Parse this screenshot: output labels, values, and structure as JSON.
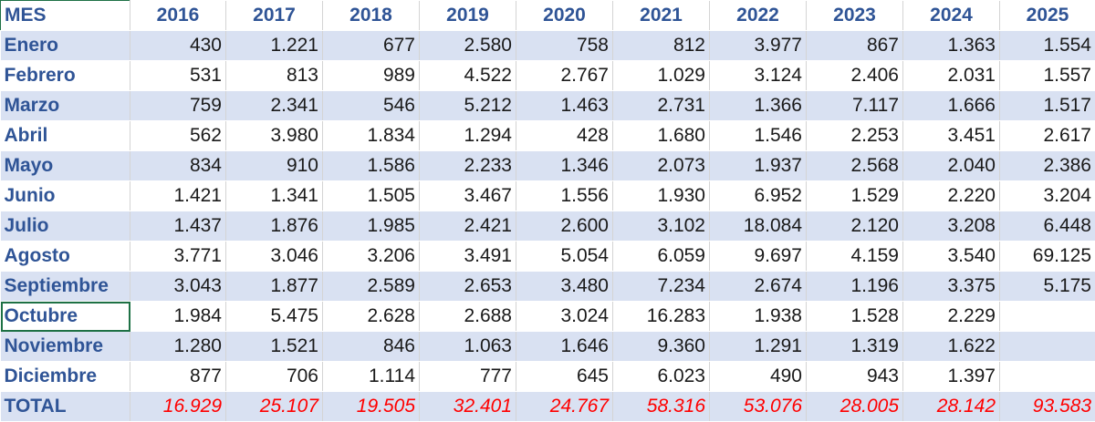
{
  "header": {
    "first": "MES",
    "years": [
      "2016",
      "2017",
      "2018",
      "2019",
      "2020",
      "2021",
      "2022",
      "2023",
      "2024",
      "2025"
    ]
  },
  "rows": [
    {
      "month": "Enero",
      "values": [
        "430",
        "1.221",
        "677",
        "2.580",
        "758",
        "812",
        "3.977",
        "867",
        "1.363",
        "1.554"
      ]
    },
    {
      "month": "Febrero",
      "values": [
        "531",
        "813",
        "989",
        "4.522",
        "2.767",
        "1.029",
        "3.124",
        "2.406",
        "2.031",
        "1.557"
      ]
    },
    {
      "month": "Marzo",
      "values": [
        "759",
        "2.341",
        "546",
        "5.212",
        "1.463",
        "2.731",
        "1.366",
        "7.117",
        "1.666",
        "1.517"
      ]
    },
    {
      "month": "Abril",
      "values": [
        "562",
        "3.980",
        "1.834",
        "1.294",
        "428",
        "1.680",
        "1.546",
        "2.253",
        "3.451",
        "2.617"
      ]
    },
    {
      "month": "Mayo",
      "values": [
        "834",
        "910",
        "1.586",
        "2.233",
        "1.346",
        "2.073",
        "1.937",
        "2.568",
        "2.040",
        "2.386"
      ]
    },
    {
      "month": "Junio",
      "values": [
        "1.421",
        "1.341",
        "1.505",
        "3.467",
        "1.556",
        "1.930",
        "6.952",
        "1.529",
        "2.220",
        "3.204"
      ]
    },
    {
      "month": "Julio",
      "values": [
        "1.437",
        "1.876",
        "1.985",
        "2.421",
        "2.600",
        "3.102",
        "18.084",
        "2.120",
        "3.208",
        "6.448"
      ]
    },
    {
      "month": "Agosto",
      "values": [
        "3.771",
        "3.046",
        "3.206",
        "3.491",
        "5.054",
        "6.059",
        "9.697",
        "4.159",
        "3.540",
        "69.125"
      ]
    },
    {
      "month": "Septiembre",
      "values": [
        "3.043",
        "1.877",
        "2.589",
        "2.653",
        "3.480",
        "7.234",
        "2.674",
        "1.196",
        "3.375",
        "5.175"
      ]
    },
    {
      "month": "Octubre",
      "values": [
        "1.984",
        "5.475",
        "2.628",
        "2.688",
        "3.024",
        "16.283",
        "1.938",
        "1.528",
        "2.229",
        ""
      ]
    },
    {
      "month": "Noviembre",
      "values": [
        "1.280",
        "1.521",
        "846",
        "1.063",
        "1.646",
        "9.360",
        "1.291",
        "1.319",
        "1.622",
        ""
      ]
    },
    {
      "month": "Diciembre",
      "values": [
        "877",
        "706",
        "1.114",
        "777",
        "645",
        "6.023",
        "490",
        "943",
        "1.397",
        ""
      ]
    }
  ],
  "total": {
    "label": "TOTAL",
    "values": [
      "16.929",
      "25.107",
      "19.505",
      "32.401",
      "24.767",
      "58.316",
      "53.076",
      "28.005",
      "28.142",
      "93.583"
    ]
  }
}
